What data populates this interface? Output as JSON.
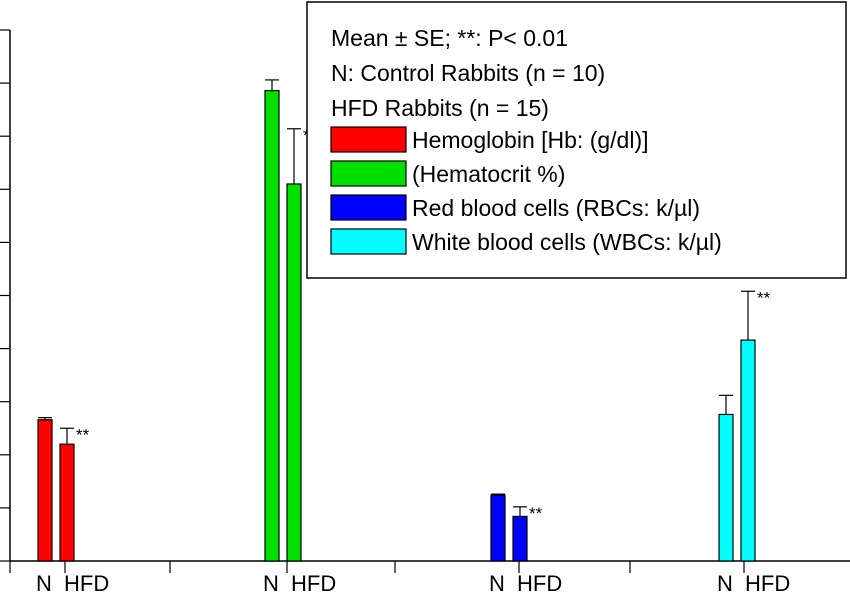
{
  "chart_data": {
    "type": "bar",
    "groups": [
      {
        "bars": [
          {
            "category": "N",
            "series": "Hemoglobin [Hb: (g/dl)]",
            "color": "#ff0000",
            "value": 13.3,
            "error": 0.2,
            "significance": ""
          },
          {
            "category": "HFD",
            "series": "Hemoglobin [Hb: (g/dl)]",
            "color": "#ff0000",
            "value": 11.0,
            "error": 1.5,
            "significance": "**"
          }
        ]
      },
      {
        "bars": [
          {
            "category": "N",
            "series": "(Hematocrit %)",
            "color": "#00e000",
            "value": 44.3,
            "error": 1.0,
            "significance": ""
          },
          {
            "category": "HFD",
            "series": "(Hematocrit %)",
            "color": "#00e000",
            "value": 35.5,
            "error": 5.2,
            "significance": "**"
          }
        ]
      },
      {
        "bars": [
          {
            "category": "N",
            "series": "Red blood cells (RBCs: k/µl)",
            "color": "#0000ff",
            "value": 6.2,
            "error": 0.1,
            "significance": ""
          },
          {
            "category": "HFD",
            "series": "Red blood cells (RBCs: k/µl)",
            "color": "#0000ff",
            "value": 4.2,
            "error": 0.9,
            "significance": "**"
          }
        ]
      },
      {
        "bars": [
          {
            "category": "N",
            "series": "White blood cells (WBCs: k/µl)",
            "color": "#00ffff",
            "value": 13.8,
            "error": 1.8,
            "significance": ""
          },
          {
            "category": "HFD",
            "series": "White blood cells (WBCs: k/µl)",
            "color": "#00ffff",
            "value": 20.8,
            "error": 4.6,
            "significance": "**"
          }
        ]
      }
    ],
    "ylim": [
      0,
      50
    ],
    "ytick_step": 5,
    "grid": false,
    "legend_position": "top-right",
    "legend": {
      "notes": [
        "Mean ± SE;  **: P< 0.01",
        "N: Control Rabbits (n = 10)",
        "HFD Rabbits (n = 15)"
      ],
      "entries": [
        {
          "label": "Hemoglobin [Hb: (g/dl)]",
          "color": "#ff0000"
        },
        {
          "label": "(Hematocrit %)",
          "color": "#00e000"
        },
        {
          "label": "Red blood cells (RBCs: k/µl)",
          "color": "#0000ff"
        },
        {
          "label": "White blood cells (WBCs: k/µl)",
          "color": "#00ffff"
        }
      ]
    }
  }
}
